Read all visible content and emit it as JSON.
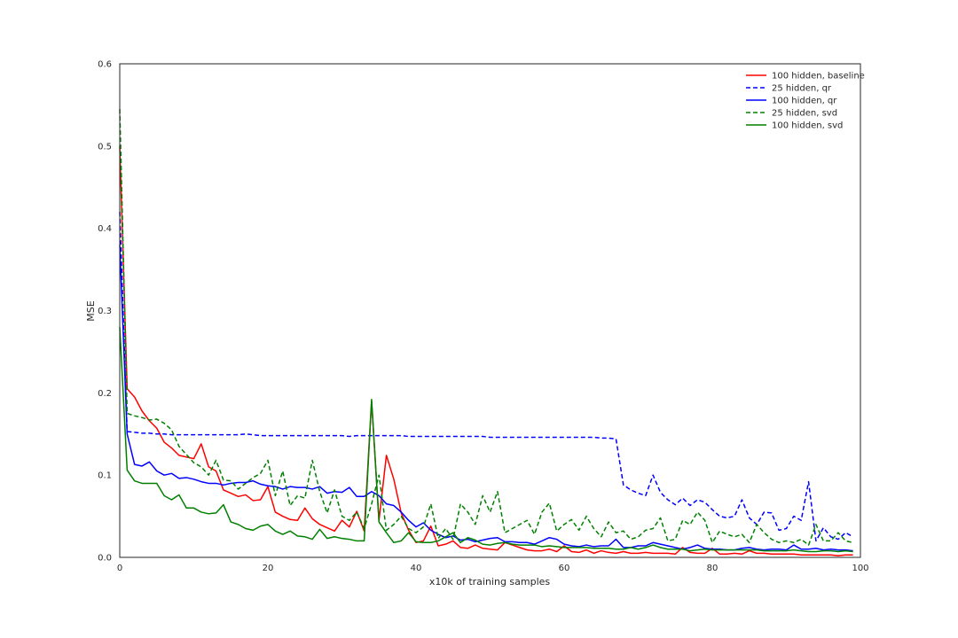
{
  "chart_data": {
    "type": "line",
    "title": "",
    "xlabel": "x10k of training samples",
    "ylabel": "MSE",
    "xlim": [
      0,
      100
    ],
    "ylim": [
      0,
      0.6
    ],
    "xticks": [
      "0",
      "20",
      "40",
      "60",
      "80",
      "100"
    ],
    "yticks": [
      "0.0",
      "0.1",
      "0.2",
      "0.3",
      "0.4",
      "0.5",
      "0.6"
    ],
    "grid": false,
    "legend_position": "top-right",
    "x": [
      0,
      1,
      2,
      3,
      4,
      5,
      6,
      7,
      8,
      9,
      10,
      11,
      12,
      13,
      14,
      15,
      16,
      17,
      18,
      19,
      20,
      21,
      22,
      23,
      24,
      25,
      26,
      27,
      28,
      29,
      30,
      31,
      32,
      33,
      34,
      35,
      36,
      37,
      38,
      39,
      40,
      41,
      42,
      43,
      44,
      45,
      46,
      47,
      48,
      49,
      50,
      51,
      52,
      53,
      54,
      55,
      56,
      57,
      58,
      59,
      60,
      61,
      62,
      63,
      64,
      65,
      66,
      67,
      68,
      69,
      70,
      71,
      72,
      73,
      74,
      75,
      76,
      77,
      78,
      79,
      80,
      81,
      82,
      83,
      84,
      85,
      86,
      87,
      88,
      89,
      90,
      91,
      92,
      93,
      94,
      95,
      96,
      97,
      98,
      99
    ],
    "series": [
      {
        "name": "100 hidden, baseline",
        "color": "#ff0000",
        "dash": "solid",
        "values": [
          0.5,
          0.205,
          0.195,
          0.178,
          0.166,
          0.157,
          0.14,
          0.133,
          0.124,
          0.122,
          0.12,
          0.138,
          0.11,
          0.105,
          0.082,
          0.078,
          0.074,
          0.076,
          0.069,
          0.07,
          0.086,
          0.055,
          0.05,
          0.046,
          0.045,
          0.06,
          0.047,
          0.04,
          0.036,
          0.032,
          0.045,
          0.037,
          0.056,
          0.032,
          0.19,
          0.045,
          0.124,
          0.095,
          0.054,
          0.033,
          0.018,
          0.02,
          0.038,
          0.014,
          0.016,
          0.02,
          0.012,
          0.011,
          0.015,
          0.011,
          0.01,
          0.009,
          0.018,
          0.015,
          0.012,
          0.009,
          0.008,
          0.008,
          0.01,
          0.007,
          0.014,
          0.007,
          0.006,
          0.009,
          0.005,
          0.008,
          0.006,
          0.005,
          0.007,
          0.005,
          0.005,
          0.006,
          0.005,
          0.005,
          0.005,
          0.004,
          0.012,
          0.006,
          0.005,
          0.005,
          0.011,
          0.004,
          0.004,
          0.005,
          0.004,
          0.008,
          0.005,
          0.005,
          0.004,
          0.004,
          0.004,
          0.004,
          0.003,
          0.003,
          0.003,
          0.003,
          0.003,
          0.002,
          0.003,
          0.003
        ]
      },
      {
        "name": "25 hidden, qr",
        "color": "#0000ff",
        "dash": "dashed",
        "values": [
          0.42,
          0.153,
          0.152,
          0.151,
          0.151,
          0.15,
          0.15,
          0.149,
          0.149,
          0.149,
          0.149,
          0.149,
          0.149,
          0.149,
          0.149,
          0.149,
          0.149,
          0.15,
          0.149,
          0.148,
          0.148,
          0.148,
          0.148,
          0.148,
          0.148,
          0.148,
          0.148,
          0.148,
          0.148,
          0.148,
          0.148,
          0.147,
          0.148,
          0.148,
          0.148,
          0.148,
          0.148,
          0.148,
          0.148,
          0.147,
          0.147,
          0.147,
          0.147,
          0.147,
          0.147,
          0.147,
          0.147,
          0.147,
          0.147,
          0.147,
          0.146,
          0.146,
          0.146,
          0.146,
          0.146,
          0.146,
          0.146,
          0.146,
          0.146,
          0.146,
          0.146,
          0.146,
          0.146,
          0.146,
          0.146,
          0.145,
          0.145,
          0.144,
          0.088,
          0.082,
          0.078,
          0.075,
          0.1,
          0.079,
          0.07,
          0.064,
          0.072,
          0.063,
          0.07,
          0.067,
          0.058,
          0.05,
          0.048,
          0.05,
          0.07,
          0.048,
          0.04,
          0.055,
          0.054,
          0.033,
          0.035,
          0.05,
          0.045,
          0.092,
          0.02,
          0.036,
          0.025,
          0.022,
          0.03,
          0.025
        ]
      },
      {
        "name": "100 hidden, qr",
        "color": "#0000ff",
        "dash": "solid",
        "values": [
          0.38,
          0.15,
          0.113,
          0.111,
          0.116,
          0.105,
          0.1,
          0.102,
          0.096,
          0.097,
          0.095,
          0.092,
          0.09,
          0.09,
          0.088,
          0.09,
          0.091,
          0.091,
          0.093,
          0.089,
          0.087,
          0.086,
          0.083,
          0.086,
          0.085,
          0.085,
          0.083,
          0.086,
          0.078,
          0.08,
          0.079,
          0.085,
          0.074,
          0.074,
          0.08,
          0.075,
          0.065,
          0.063,
          0.055,
          0.045,
          0.037,
          0.042,
          0.033,
          0.028,
          0.024,
          0.026,
          0.021,
          0.022,
          0.019,
          0.021,
          0.023,
          0.024,
          0.019,
          0.019,
          0.018,
          0.018,
          0.016,
          0.02,
          0.024,
          0.022,
          0.016,
          0.014,
          0.013,
          0.015,
          0.013,
          0.014,
          0.014,
          0.022,
          0.012,
          0.012,
          0.014,
          0.014,
          0.018,
          0.016,
          0.014,
          0.012,
          0.01,
          0.012,
          0.015,
          0.011,
          0.01,
          0.01,
          0.009,
          0.009,
          0.011,
          0.012,
          0.01,
          0.009,
          0.01,
          0.01,
          0.009,
          0.015,
          0.01,
          0.01,
          0.011,
          0.009,
          0.01,
          0.009,
          0.009,
          0.008
        ]
      },
      {
        "name": "25 hidden, svd",
        "color": "#008000",
        "dash": "dashed",
        "values": [
          0.545,
          0.175,
          0.172,
          0.17,
          0.167,
          0.168,
          0.163,
          0.155,
          0.135,
          0.125,
          0.115,
          0.11,
          0.1,
          0.118,
          0.094,
          0.093,
          0.083,
          0.09,
          0.097,
          0.102,
          0.118,
          0.075,
          0.105,
          0.063,
          0.075,
          0.072,
          0.118,
          0.08,
          0.054,
          0.082,
          0.05,
          0.045,
          0.055,
          0.035,
          0.065,
          0.1,
          0.033,
          0.04,
          0.05,
          0.035,
          0.03,
          0.037,
          0.065,
          0.023,
          0.035,
          0.022,
          0.065,
          0.055,
          0.04,
          0.075,
          0.055,
          0.08,
          0.03,
          0.035,
          0.04,
          0.045,
          0.028,
          0.055,
          0.066,
          0.032,
          0.04,
          0.046,
          0.033,
          0.05,
          0.035,
          0.025,
          0.043,
          0.03,
          0.032,
          0.022,
          0.025,
          0.033,
          0.035,
          0.048,
          0.02,
          0.022,
          0.045,
          0.04,
          0.055,
          0.045,
          0.018,
          0.032,
          0.028,
          0.025,
          0.028,
          0.018,
          0.04,
          0.03,
          0.022,
          0.018,
          0.02,
          0.018,
          0.022,
          0.015,
          0.04,
          0.02,
          0.02,
          0.03,
          0.02,
          0.018
        ]
      },
      {
        "name": "100 hidden, svd",
        "color": "#008000",
        "dash": "solid",
        "values": [
          0.28,
          0.106,
          0.093,
          0.09,
          0.09,
          0.09,
          0.075,
          0.07,
          0.076,
          0.06,
          0.06,
          0.055,
          0.053,
          0.054,
          0.064,
          0.043,
          0.04,
          0.035,
          0.033,
          0.038,
          0.04,
          0.032,
          0.028,
          0.032,
          0.026,
          0.025,
          0.022,
          0.034,
          0.023,
          0.025,
          0.023,
          0.022,
          0.02,
          0.02,
          0.192,
          0.043,
          0.03,
          0.018,
          0.02,
          0.03,
          0.019,
          0.018,
          0.018,
          0.02,
          0.025,
          0.03,
          0.018,
          0.024,
          0.021,
          0.016,
          0.015,
          0.017,
          0.018,
          0.016,
          0.015,
          0.015,
          0.015,
          0.013,
          0.014,
          0.013,
          0.012,
          0.012,
          0.012,
          0.012,
          0.011,
          0.011,
          0.011,
          0.01,
          0.01,
          0.012,
          0.01,
          0.012,
          0.015,
          0.012,
          0.01,
          0.01,
          0.01,
          0.008,
          0.009,
          0.01,
          0.009,
          0.009,
          0.009,
          0.009,
          0.009,
          0.009,
          0.009,
          0.008,
          0.008,
          0.008,
          0.008,
          0.009,
          0.008,
          0.007,
          0.007,
          0.008,
          0.008,
          0.007,
          0.008,
          0.007
        ]
      }
    ]
  }
}
